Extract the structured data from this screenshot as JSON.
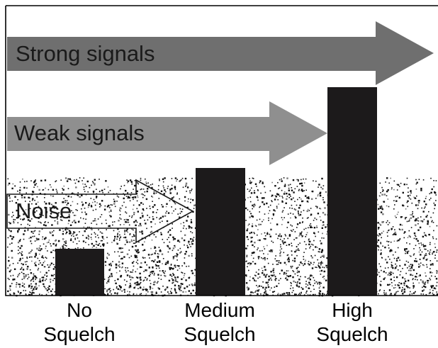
{
  "arrows": [
    {
      "id": "strong",
      "label": "Strong signals",
      "level": "strong",
      "fill": "#6f6f6f"
    },
    {
      "id": "weak",
      "label": "Weak signals",
      "level": "weak",
      "fill": "#8f8f8f"
    },
    {
      "id": "noise",
      "label": "Noise",
      "level": "noise",
      "fill": "#ffffff"
    }
  ],
  "squelch_bars": [
    {
      "id": "no",
      "label_lines": [
        "No",
        "Squelch"
      ],
      "level": "below noise",
      "color": "#1c1a1b"
    },
    {
      "id": "medium",
      "label_lines": [
        "Medium",
        "Squelch"
      ],
      "level": "above noise, below weak signals",
      "color": "#1c1a1b"
    },
    {
      "id": "high",
      "label_lines": [
        "High",
        "Squelch"
      ],
      "level": "above weak signals, below strong signals",
      "color": "#1c1a1b"
    }
  ],
  "colors": {
    "frame": "#000000",
    "noise_dots": "#111111",
    "background": "#ffffff"
  }
}
